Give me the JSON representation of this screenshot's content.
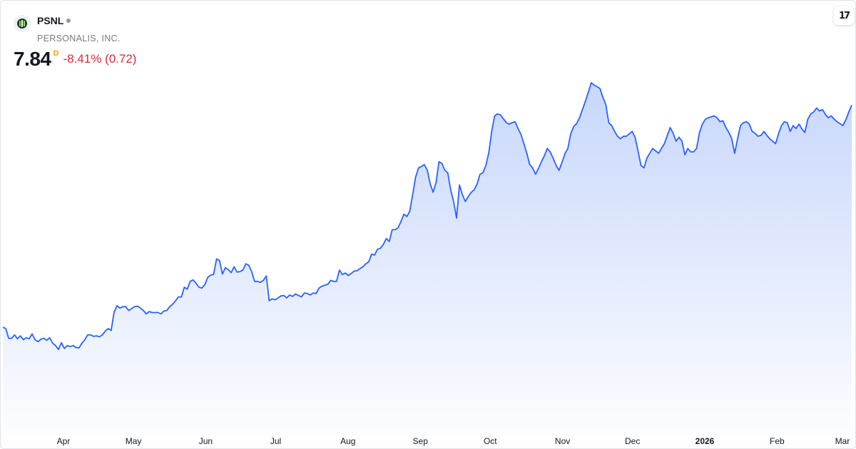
{
  "header": {
    "ticker": "PSNL",
    "company": "PERSONALIS, INC.",
    "price": "7.84",
    "interval_flag": "D",
    "change": "-8.41% (0.72)",
    "logo_icon": "personalis-logo-icon",
    "tv_logo_text": "17"
  },
  "colors": {
    "line": "#2962ff",
    "area_top": "#c5d5fb",
    "area_bottom": "#ffffff",
    "negative": "#e0283b",
    "flag": "#f7a600"
  },
  "chart_data": {
    "type": "area",
    "title": "",
    "xlabel": "",
    "ylabel": "",
    "ylim": [
      1.2,
      9.4
    ],
    "grid": false,
    "legend": "none",
    "x_ticks": [
      {
        "label": "Apr",
        "date": "2025-04-01",
        "bold": false
      },
      {
        "label": "May",
        "date": "2025-05-01",
        "bold": false
      },
      {
        "label": "Jun",
        "date": "2025-06-01",
        "bold": false
      },
      {
        "label": "Jul",
        "date": "2025-07-01",
        "bold": false
      },
      {
        "label": "Aug",
        "date": "2025-08-01",
        "bold": false
      },
      {
        "label": "Sep",
        "date": "2025-09-01",
        "bold": false
      },
      {
        "label": "Oct",
        "date": "2025-10-01",
        "bold": false
      },
      {
        "label": "Nov",
        "date": "2025-11-01",
        "bold": false
      },
      {
        "label": "Dec",
        "date": "2025-12-01",
        "bold": false
      },
      {
        "label": "2026",
        "date": "2026-01-01",
        "bold": true
      },
      {
        "label": "Feb",
        "date": "2026-02-01",
        "bold": false
      },
      {
        "label": "Mar",
        "date": "2026-03-01",
        "bold": false
      }
    ],
    "series": [
      {
        "values": [
          [
            3.28,
            3.25,
            3.05,
            3.05,
            3.12,
            3.04,
            3.1,
            3.02,
            3.06,
            3.04,
            3.14,
            3.02,
            2.98,
            3.03,
            3.05,
            3.01,
            3.06,
            2.95,
            2.9,
            2.82,
            2.96,
            2.84,
            2.9,
            2.88,
            2.9,
            2.86,
            2.85,
            2.95,
            3.02,
            3.12,
            3.12,
            3.09,
            3.1,
            3.08,
            3.12,
            3.2,
            3.25,
            3.21,
            3.58,
            3.72,
            3.67,
            3.7,
            3.7,
            3.62,
            3.66,
            3.7,
            3.71,
            3.67,
            3.62,
            3.55,
            3.6,
            3.58,
            3.58,
            3.58,
            3.55,
            3.61,
            3.62,
            3.7,
            3.75,
            3.82,
            3.9,
            3.9,
            4.1,
            4.06,
            4.22,
            4.25,
            4.18,
            4.1,
            4.08,
            4.15,
            4.3,
            4.35,
            4.36,
            4.68,
            4.65,
            4.37,
            4.5,
            4.46,
            4.4,
            4.52,
            4.41,
            4.42,
            4.45,
            4.58,
            4.55,
            4.42,
            4.22,
            4.22,
            4.2,
            4.24,
            4.33,
            3.82,
            3.86,
            3.84,
            3.88,
            3.92,
            3.93,
            3.88,
            3.94,
            3.91,
            3.96,
            3.93,
            3.9,
            3.98,
            3.97,
            3.94,
            3.98,
            3.97,
            4.08,
            4.12,
            4.14,
            4.16,
            4.24,
            4.22,
            4.22,
            4.45,
            4.36,
            4.39,
            4.34,
            4.38,
            4.43,
            4.44,
            4.48,
            4.52,
            4.58,
            4.62,
            4.78,
            4.76,
            4.88,
            4.9,
            4.98,
            5.1,
            5.04,
            5.28,
            5.28,
            5.32,
            5.45,
            5.6,
            5.55,
            5.66,
            6.0,
            6.36,
            6.55,
            6.58,
            6.62,
            6.5,
            6.22,
            6.05,
            6.25,
            6.68,
            6.64,
            6.5,
            6.45,
            6.1,
            5.86,
            5.52,
            6.2,
            6.0,
            5.86,
            5.96,
            6.05,
            6.1,
            6.22,
            6.42,
            6.45,
            6.6,
            6.86,
            7.3,
            7.62,
            7.66,
            7.64,
            7.56,
            7.48,
            7.45,
            7.48,
            7.5,
            7.36,
            7.24,
            7.05,
            6.85,
            6.62,
            6.55,
            6.42,
            6.54,
            6.68,
            6.8,
            6.95,
            6.88,
            6.75,
            6.6,
            6.5,
            6.66,
            6.84,
            6.95,
            7.25,
            7.4,
            7.46,
            7.58,
            7.75,
            7.92,
            8.1,
            8.3,
            8.25,
            8.22,
            8.18,
            8.0,
            7.85,
            7.48,
            7.42,
            7.3,
            7.2,
            7.15,
            7.2,
            7.2,
            7.25,
            7.3,
            7.18,
            6.9,
            6.6,
            6.55,
            6.75,
            6.85,
            6.95,
            6.9,
            6.85,
            6.95,
            7.05,
            7.22,
            7.38,
            7.26,
            7.1,
            7.18,
            7.1,
            6.82
          ],
          [
            6.95,
            6.88,
            6.88,
            6.95,
            7.28,
            7.45,
            7.55,
            7.58,
            7.6,
            7.62,
            7.58,
            7.5,
            7.52,
            7.38,
            7.28,
            7.15,
            6.85,
            7.15,
            7.42,
            7.48,
            7.5,
            7.45,
            7.3,
            7.26,
            7.2,
            7.22,
            7.3,
            7.22,
            7.15,
            7.1,
            7.05,
            7.25,
            7.42,
            7.5,
            7.48,
            7.3,
            7.42,
            7.36,
            7.45,
            7.35,
            7.28,
            7.55,
            7.66,
            7.7,
            7.78,
            7.72,
            7.75,
            7.65,
            7.58,
            7.62,
            7.55,
            7.5,
            7.46,
            7.42,
            7.54,
            7.7,
            7.84
          ]
        ]
      }
    ]
  }
}
